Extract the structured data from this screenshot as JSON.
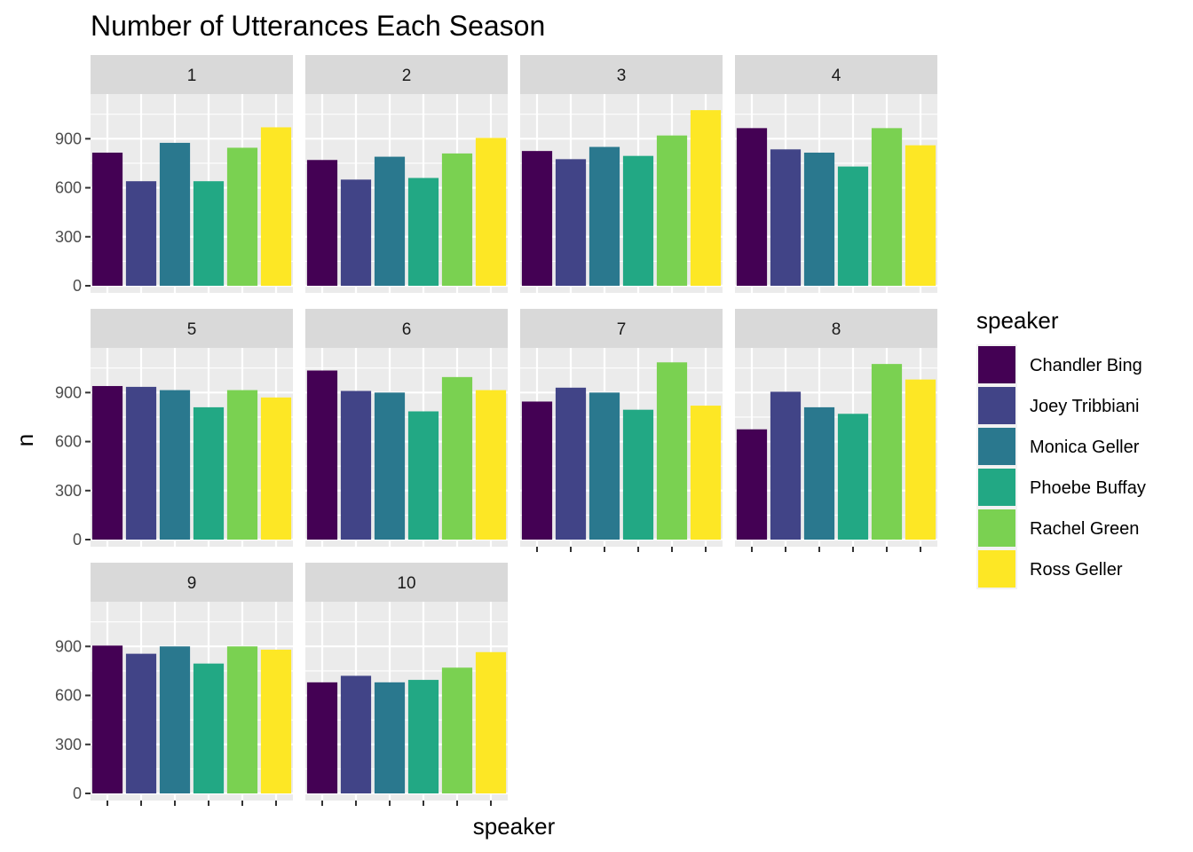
{
  "chart_data": {
    "type": "bar",
    "title": "Number of Utterances Each Season",
    "xlabel": "speaker",
    "ylabel": "n",
    "ylim": [
      0,
      1130
    ],
    "yticks": [
      0,
      300,
      600,
      900
    ],
    "grid": true,
    "legend_title": "speaker",
    "legend_position": "right",
    "categories": [
      "Chandler Bing",
      "Joey Tribbiani",
      "Monica Geller",
      "Phoebe Buffay",
      "Rachel Green",
      "Ross Geller"
    ],
    "colors": [
      "#440154",
      "#414487",
      "#2a788e",
      "#22a884",
      "#7ad151",
      "#fde725"
    ],
    "facets": [
      {
        "label": "1",
        "values": [
          815,
          640,
          875,
          640,
          845,
          970
        ]
      },
      {
        "label": "2",
        "values": [
          770,
          650,
          790,
          660,
          810,
          905
        ]
      },
      {
        "label": "3",
        "values": [
          825,
          775,
          850,
          795,
          920,
          1075
        ]
      },
      {
        "label": "4",
        "values": [
          965,
          835,
          815,
          730,
          965,
          860
        ]
      },
      {
        "label": "5",
        "values": [
          940,
          935,
          915,
          810,
          915,
          870
        ]
      },
      {
        "label": "6",
        "values": [
          1035,
          910,
          900,
          785,
          995,
          915
        ]
      },
      {
        "label": "7",
        "values": [
          845,
          930,
          900,
          795,
          1085,
          820
        ]
      },
      {
        "label": "8",
        "values": [
          675,
          905,
          810,
          770,
          1075,
          980
        ]
      },
      {
        "label": "9",
        "values": [
          905,
          855,
          900,
          795,
          900,
          880
        ]
      },
      {
        "label": "10",
        "values": [
          680,
          720,
          680,
          695,
          770,
          865
        ]
      }
    ]
  }
}
